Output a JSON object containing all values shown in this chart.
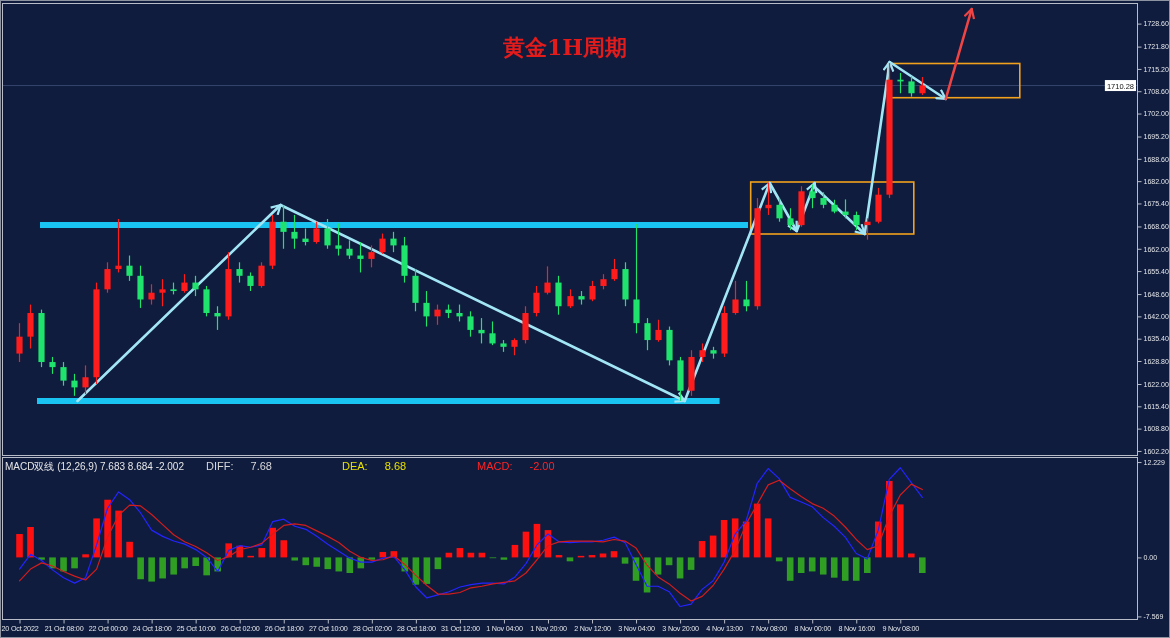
{
  "chart_data": [
    {
      "type": "candlestick",
      "title": "黄金1H周期",
      "categories": [
        null,
        null,
        null,
        null,
        null,
        null,
        null,
        null,
        null,
        null,
        null,
        null,
        null,
        null,
        null,
        null,
        null,
        null,
        null,
        null,
        null,
        null,
        null,
        null,
        null,
        null,
        null,
        null,
        null,
        null,
        null,
        null,
        null,
        null,
        null,
        null,
        null,
        null,
        null,
        null,
        null,
        null,
        null,
        null,
        null,
        null,
        null,
        null,
        null,
        null,
        null,
        null,
        null,
        null,
        null,
        null,
        null,
        null,
        null,
        null,
        null,
        null,
        null,
        null,
        null,
        null,
        null,
        null,
        null,
        null,
        null,
        null,
        null,
        null,
        null,
        null,
        null,
        null,
        null,
        null,
        null,
        null,
        null,
        null,
        null,
        null,
        null,
        null,
        null,
        null,
        null,
        null,
        null,
        null,
        null,
        null,
        null,
        null,
        null,
        null,
        null,
        null,
        null
      ],
      "ohlc": [
        null,
        [
          1631,
          1640,
          1628.5,
          1636
        ],
        [
          1636,
          1645.5,
          1632.5,
          1643
        ],
        [
          1643,
          1644,
          1627,
          1628.5
        ],
        [
          1628.5,
          1630,
          1625,
          1627
        ],
        [
          1627,
          1628.5,
          1621.5,
          1623
        ],
        [
          1623,
          1625,
          1618.5,
          1621
        ],
        [
          1621,
          1627.5,
          1619,
          1624
        ],
        [
          1624,
          1652,
          1622,
          1650
        ],
        [
          1650,
          1658,
          1649,
          1656
        ],
        [
          1656,
          1670.8,
          1655,
          1657
        ],
        [
          1657,
          1660,
          1652.5,
          1654
        ],
        [
          1654,
          1657,
          1644.5,
          1647
        ],
        [
          1647,
          1651.5,
          1645.5,
          1649
        ],
        [
          1649,
          1653,
          1645,
          1650
        ],
        [
          1650,
          1652,
          1648.5,
          1649.5
        ],
        [
          1649.5,
          1654.5,
          1649,
          1652
        ],
        [
          1652,
          1654,
          1648,
          1650
        ],
        [
          1650,
          1651,
          1642,
          1643
        ],
        [
          1643,
          1645,
          1638,
          1642
        ],
        [
          1642,
          1661,
          1641,
          1656
        ],
        [
          1656,
          1658,
          1652,
          1654
        ],
        [
          1654,
          1655,
          1649.5,
          1651
        ],
        [
          1651,
          1658,
          1650.5,
          1657
        ],
        [
          1657,
          1672,
          1656,
          1670
        ],
        [
          1670,
          1674.8,
          1662,
          1667
        ],
        [
          1667,
          1672,
          1662,
          1665
        ],
        [
          1665,
          1668,
          1663,
          1664
        ],
        [
          1664,
          1670,
          1663.5,
          1668
        ],
        [
          1668,
          1670.8,
          1662,
          1663
        ],
        [
          1663,
          1669.5,
          1660,
          1662
        ],
        [
          1662,
          1664.5,
          1659,
          1660
        ],
        [
          1660,
          1664,
          1655,
          1659
        ],
        [
          1659,
          1663,
          1656.5,
          1661
        ],
        [
          1661,
          1666.5,
          1660.5,
          1665
        ],
        [
          1665,
          1667,
          1661,
          1663
        ],
        [
          1663,
          1665.5,
          1652,
          1654
        ],
        [
          1654,
          1656,
          1643.5,
          1646
        ],
        [
          1646,
          1649.5,
          1639,
          1642
        ],
        [
          1642,
          1645.5,
          1639.5,
          1644
        ],
        [
          1644,
          1645.5,
          1641.5,
          1643
        ],
        [
          1643,
          1645.5,
          1640.5,
          1642
        ],
        [
          1642,
          1643.5,
          1636,
          1638
        ],
        [
          1638,
          1641.5,
          1634,
          1637
        ],
        [
          1637,
          1640.5,
          1633.5,
          1634
        ],
        [
          1634,
          1635,
          1631.5,
          1633
        ],
        [
          1633,
          1635.5,
          1630.5,
          1635
        ],
        [
          1635,
          1645,
          1634,
          1643
        ],
        [
          1643,
          1651,
          1642,
          1649
        ],
        [
          1649,
          1656.8,
          1648.5,
          1652
        ],
        [
          1652,
          1654,
          1642.5,
          1645
        ],
        [
          1645,
          1650,
          1644.5,
          1648
        ],
        [
          1648,
          1649.5,
          1645.5,
          1647
        ],
        [
          1647,
          1652.5,
          1646.5,
          1651
        ],
        [
          1651,
          1654.5,
          1650,
          1653
        ],
        [
          1653,
          1659,
          1652.5,
          1656
        ],
        [
          1656,
          1658,
          1645,
          1647
        ],
        [
          1647,
          1669.3,
          1637,
          1640
        ],
        [
          1640,
          1641.5,
          1632,
          1635
        ],
        [
          1635,
          1641,
          1634.5,
          1638
        ],
        [
          1638,
          1639,
          1627.5,
          1629
        ],
        [
          1629,
          1630,
          1617,
          1620
        ],
        [
          1620,
          1632,
          1618.5,
          1630
        ],
        [
          1630,
          1634,
          1628.5,
          1632
        ],
        [
          1632,
          1633,
          1629.5,
          1631
        ],
        [
          1631,
          1645,
          1630,
          1643
        ],
        [
          1643,
          1652.5,
          1642.5,
          1647
        ],
        [
          1647,
          1652.5,
          1643.5,
          1645
        ],
        [
          1645,
          1677,
          1644,
          1674
        ],
        [
          1674,
          1681.6,
          1672,
          1675
        ],
        [
          1675,
          1677,
          1670,
          1671
        ],
        [
          1671,
          1674,
          1667.5,
          1669
        ],
        [
          1669,
          1680.5,
          1668.5,
          1679
        ],
        [
          1679,
          1681,
          1674,
          1677
        ],
        [
          1677,
          1678.7,
          1674,
          1675
        ],
        [
          1675,
          1676.5,
          1672.5,
          1673
        ],
        [
          1673,
          1676.6,
          1671,
          1672
        ],
        [
          1672,
          1673,
          1667.5,
          1669
        ],
        [
          1669,
          1671,
          1664.7,
          1670
        ],
        [
          1670,
          1680,
          1669.5,
          1678
        ],
        [
          1678,
          1716.9,
          1677,
          1712
        ],
        [
          1712,
          1714,
          1708,
          1711.5
        ],
        [
          1711.5,
          1713,
          1707,
          1708
        ],
        [
          1708,
          1712.8,
          1707.5,
          1710.28
        ],
        null,
        null,
        null,
        null,
        null,
        null,
        null,
        null,
        null,
        null,
        null,
        null,
        null,
        null,
        null,
        null,
        null,
        null,
        null
      ],
      "colors": [
        null,
        "#ff1c1c",
        "#ff1c1c",
        "#1fe36c",
        "#1fe36c",
        "#1fe36c",
        "#1fe36c",
        "#ff1c1c",
        "#ff1c1c",
        "#ff1c1c",
        "#ff1c1c",
        "#1fe36c",
        "#1fe36c",
        "#ff1c1c",
        "#ff1c1c",
        "#1fe36c",
        "#ff1c1c",
        "#1fe36c",
        "#1fe36c",
        "#1fe36c",
        "#ff1c1c",
        "#1fe36c",
        "#1fe36c",
        "#ff1c1c",
        "#ff1c1c",
        "#1fe36c",
        "#1fe36c",
        "#1fe36c",
        "#ff1c1c",
        "#1fe36c",
        "#1fe36c",
        "#1fe36c",
        "#1fe36c",
        "#ff1c1c",
        "#ff1c1c",
        "#1fe36c",
        "#1fe36c",
        "#1fe36c",
        "#1fe36c",
        "#ff1c1c",
        "#1fe36c",
        "#1fe36c",
        "#1fe36c",
        "#1fe36c",
        "#1fe36c",
        "#1fe36c",
        "#ff1c1c",
        "#ff1c1c",
        "#ff1c1c",
        "#ff1c1c",
        "#1fe36c",
        "#ff1c1c",
        "#1fe36c",
        "#ff1c1c",
        "#ff1c1c",
        "#ff1c1c",
        "#1fe36c",
        "#1fe36c",
        "#1fe36c",
        "#ff1c1c",
        "#1fe36c",
        "#1fe36c",
        "#ff1c1c",
        "#ff1c1c",
        "#1fe36c",
        "#ff1c1c",
        "#ff1c1c",
        "#1fe36c",
        "#ff1c1c",
        "#ff1c1c",
        "#1fe36c",
        "#1fe36c",
        "#ff1c1c",
        "#1fe36c",
        "#1fe36c",
        "#1fe36c",
        "#1fe36c",
        "#1fe36c",
        "#ff1c1c",
        "#ff1c1c",
        "#ff1c1c",
        "#1fe36c",
        "#1fe36c",
        "#ff1c1c",
        null,
        null,
        null,
        null,
        null,
        null,
        null,
        null,
        null,
        null,
        null,
        null,
        null,
        null,
        null,
        null,
        null,
        null,
        null
      ],
      "ylim": [
        1601,
        1734.4
      ],
      "yticks": [
        {
          "value": 1728.6,
          "label": "1728.60"
        },
        {
          "value": 1721.8,
          "label": "1721.80"
        },
        {
          "value": 1715.2,
          "label": "1715.20"
        },
        {
          "value": 1708.6,
          "label": "1708.60"
        },
        {
          "value": 1702,
          "label": "1702.00"
        },
        {
          "value": 1695.2,
          "label": "1695.20"
        },
        {
          "value": 1688.6,
          "label": "1688.60"
        },
        {
          "value": 1682,
          "label": "1682.00"
        },
        {
          "value": 1675.4,
          "label": "1675.40"
        },
        {
          "value": 1668.6,
          "label": "1668.60"
        },
        {
          "value": 1662,
          "label": "1662.00"
        },
        {
          "value": 1655.4,
          "label": "1655.40"
        },
        {
          "value": 1648.6,
          "label": "1648.60"
        },
        {
          "value": 1642,
          "label": "1642.00"
        },
        {
          "value": 1635.4,
          "label": "1635.40"
        },
        {
          "value": 1628.8,
          "label": "1628.80"
        },
        {
          "value": 1622,
          "label": "1622.00"
        },
        {
          "value": 1615.4,
          "label": "1615.40"
        },
        {
          "value": 1608.8,
          "label": "1608.80"
        },
        {
          "value": 1602.2,
          "label": "1602.20"
        }
      ],
      "tick_labels": "y",
      "ref_lines": [
        {
          "axis": "y",
          "value": 1669,
          "color": "#19c3f2"
        },
        {
          "axis": "y",
          "value": 1617,
          "color": "#19c3f2"
        },
        {
          "axis": "y",
          "value": 1710.28,
          "label": "1710.28",
          "color": "#34456c"
        }
      ]
    },
    {
      "type": "bar",
      "title": "MACD双线 (12,26,9) 7.683 8.684 -2.002",
      "categories": [
        null,
        "20 Oct 2022",
        null,
        null,
        null,
        "21 Oct 08:00",
        null,
        null,
        null,
        "22 Oct 00:00",
        null,
        null,
        null,
        "24 Oct 18:00",
        null,
        null,
        null,
        "25 Oct 10:00",
        null,
        null,
        null,
        "26 Oct 02:00",
        null,
        null,
        null,
        "26 Oct 18:00",
        null,
        null,
        null,
        "27 Oct 10:00",
        null,
        null,
        null,
        "28 Oct 02:00",
        null,
        null,
        null,
        "28 Oct 18:00",
        null,
        null,
        null,
        "31 Oct 12:00",
        null,
        null,
        null,
        "1 Nov 04:00",
        null,
        null,
        null,
        "1 Nov 20:00",
        null,
        null,
        null,
        "2 Nov 12:00",
        null,
        null,
        null,
        "3 Nov 04:00",
        null,
        null,
        null,
        "3 Nov 20:00",
        null,
        null,
        null,
        "4 Nov 13:00",
        null,
        null,
        null,
        "7 Nov 08:00",
        null,
        null,
        null,
        "8 Nov 00:00",
        null,
        null,
        null,
        "8 Nov 16:00",
        null,
        null,
        null,
        "9 Nov 08:00",
        null,
        null,
        null,
        null,
        null,
        null,
        null,
        null,
        null,
        null,
        null,
        null,
        null,
        null,
        null,
        null,
        null,
        null,
        null,
        null,
        null
      ],
      "series": [
        {
          "type": "bar",
          "values": [
            null,
            3.0,
            3.9,
            -0.3,
            -1.4,
            -1.8,
            -1.4,
            0.4,
            5.0,
            7.4,
            6.0,
            2.0,
            -2.8,
            -3.1,
            -2.7,
            -2.2,
            -1.4,
            -1.1,
            -2.3,
            -1.8,
            1.8,
            1.5,
            0.2,
            1.2,
            3.8,
            2.2,
            -0.4,
            -1.0,
            -1.2,
            -1.5,
            -1.8,
            -2.0,
            -1.4,
            -0.3,
            0.7,
            0.8,
            -1.8,
            -3.5,
            -3.4,
            -1.5,
            0.6,
            1.2,
            0.6,
            0.6,
            -0.1,
            -0.3,
            1.6,
            3.3,
            4.3,
            3.5,
            0.3,
            -0.5,
            0.2,
            0.3,
            0.5,
            0.8,
            -0.8,
            -3.0,
            -4.5,
            -2.2,
            -1.0,
            -2.7,
            -1.6,
            2.1,
            2.8,
            4.8,
            5.0,
            4.6,
            6.9,
            5.0,
            -0.5,
            -3.0,
            -2.0,
            -1.8,
            -2.2,
            -2.6,
            -3.0,
            -3.0,
            -2.0,
            4.6,
            9.8,
            6.8,
            0.5,
            -2.0,
            null,
            null,
            null,
            null,
            null,
            null,
            null,
            null,
            null,
            null,
            null,
            null,
            null,
            null,
            null,
            null,
            null,
            null,
            null
          ],
          "colors": [
            null,
            "#ff1010",
            "#ff1010",
            "#2f9e23",
            "#2f9e23",
            "#2f9e23",
            "#2f9e23",
            "#ff1010",
            "#ff1010",
            "#ff1010",
            "#ff1010",
            "#ff1010",
            "#2f9e23",
            "#2f9e23",
            "#2f9e23",
            "#2f9e23",
            "#2f9e23",
            "#2f9e23",
            "#2f9e23",
            "#2f9e23",
            "#ff1010",
            "#ff1010",
            "#ff1010",
            "#ff1010",
            "#ff1010",
            "#ff1010",
            "#2f9e23",
            "#2f9e23",
            "#2f9e23",
            "#2f9e23",
            "#2f9e23",
            "#2f9e23",
            "#2f9e23",
            "#2f9e23",
            "#ff1010",
            "#ff1010",
            "#2f9e23",
            "#2f9e23",
            "#2f9e23",
            "#2f9e23",
            "#ff1010",
            "#ff1010",
            "#ff1010",
            "#ff1010",
            "#2f9e23",
            "#2f9e23",
            "#ff1010",
            "#ff1010",
            "#ff1010",
            "#ff1010",
            "#ff1010",
            "#2f9e23",
            "#ff1010",
            "#ff1010",
            "#ff1010",
            "#ff1010",
            "#2f9e23",
            "#2f9e23",
            "#2f9e23",
            "#2f9e23",
            "#2f9e23",
            "#2f9e23",
            "#2f9e23",
            "#ff1010",
            "#ff1010",
            "#ff1010",
            "#ff1010",
            "#ff1010",
            "#ff1010",
            "#ff1010",
            "#2f9e23",
            "#2f9e23",
            "#2f9e23",
            "#2f9e23",
            "#2f9e23",
            "#2f9e23",
            "#2f9e23",
            "#2f9e23",
            "#2f9e23",
            "#ff1010",
            "#ff1010",
            "#ff1010",
            "#ff1010",
            "#2f9e23",
            null,
            null,
            null,
            null,
            null,
            null,
            null,
            null,
            null,
            null,
            null,
            null,
            null,
            null,
            null,
            null,
            null,
            null,
            null
          ]
        },
        {
          "type": "line",
          "color": "#2424ff",
          "values": [
            null,
            -1.5,
            0.4,
            -0.4,
            -1.6,
            -2.6,
            -3.3,
            -2.6,
            1.6,
            6.3,
            8.4,
            7.4,
            5.7,
            3.5,
            2.7,
            2.1,
            1.7,
            1.0,
            0.0,
            -1.8,
            0.9,
            1.5,
            1.3,
            1.6,
            4.6,
            4.9,
            4.0,
            3.6,
            2.7,
            1.7,
            0.8,
            -0.1,
            -0.6,
            -0.6,
            -0.1,
            0.1,
            -1.6,
            -3.8,
            -5.2,
            -4.8,
            -4.4,
            -3.8,
            -3.5,
            -3.3,
            -3.3,
            -3.4,
            -2.5,
            -0.8,
            1.6,
            3.0,
            2.0,
            1.9,
            2.0,
            2.0,
            2.2,
            2.6,
            1.9,
            -0.9,
            -3.7,
            -3.7,
            -4.4,
            -6.3,
            -6.0,
            -4.1,
            -3.0,
            -0.6,
            3.0,
            4.7,
            9.5,
            11.4,
            10.1,
            7.7,
            7.1,
            6.5,
            5.1,
            4.0,
            2.6,
            0.5,
            -0.2,
            3.5,
            10.0,
            11.5,
            9.6,
            7.7,
            null,
            null,
            null,
            null,
            null,
            null,
            null,
            null,
            null,
            null,
            null,
            null,
            null,
            null,
            null,
            null,
            null,
            null,
            null
          ]
        },
        {
          "type": "line",
          "color": "#d41c1c",
          "values": [
            null,
            -3.0,
            -1.5,
            -0.7,
            -1.1,
            -1.8,
            -2.4,
            -2.9,
            -1.5,
            2.6,
            5.4,
            6.7,
            6.6,
            5.5,
            4.2,
            2.9,
            2.0,
            1.4,
            0.6,
            -0.4,
            0.1,
            1.0,
            1.3,
            1.8,
            3.0,
            4.1,
            4.3,
            4.1,
            3.4,
            2.7,
            1.9,
            0.8,
            0.0,
            -0.4,
            -0.3,
            0.2,
            -0.9,
            -2.3,
            -3.6,
            -4.7,
            -4.7,
            -4.5,
            -3.9,
            -3.7,
            -3.4,
            -3.2,
            -3.0,
            -2.0,
            -0.3,
            1.5,
            2.0,
            2.1,
            2.1,
            2.1,
            2.0,
            2.3,
            2.1,
            1.2,
            -1.0,
            -2.5,
            -3.4,
            -4.6,
            -5.6,
            -5.0,
            -3.6,
            -1.5,
            0.9,
            4.3,
            6.8,
            9.3,
            9.9,
            8.8,
            7.8,
            6.9,
            6.3,
            5.3,
            3.9,
            2.3,
            1.0,
            1.5,
            5.3,
            8.0,
            9.4,
            8.7,
            null,
            null,
            null,
            null,
            null,
            null,
            null,
            null,
            null,
            null,
            null,
            null,
            null,
            null,
            null,
            null,
            null,
            null,
            null
          ]
        }
      ],
      "ylim": [
        -7.9,
        12.75
      ],
      "yticks": [
        {
          "value": 12.229,
          "label": "12.229"
        },
        {
          "value": 0,
          "label": "0.00"
        },
        {
          "value": -7.569,
          "label": "-7.569"
        }
      ],
      "annotations": [
        "DIFF: 7.68",
        "DEA: 8.68",
        "MACD: -2.00"
      ]
    }
  ]
}
